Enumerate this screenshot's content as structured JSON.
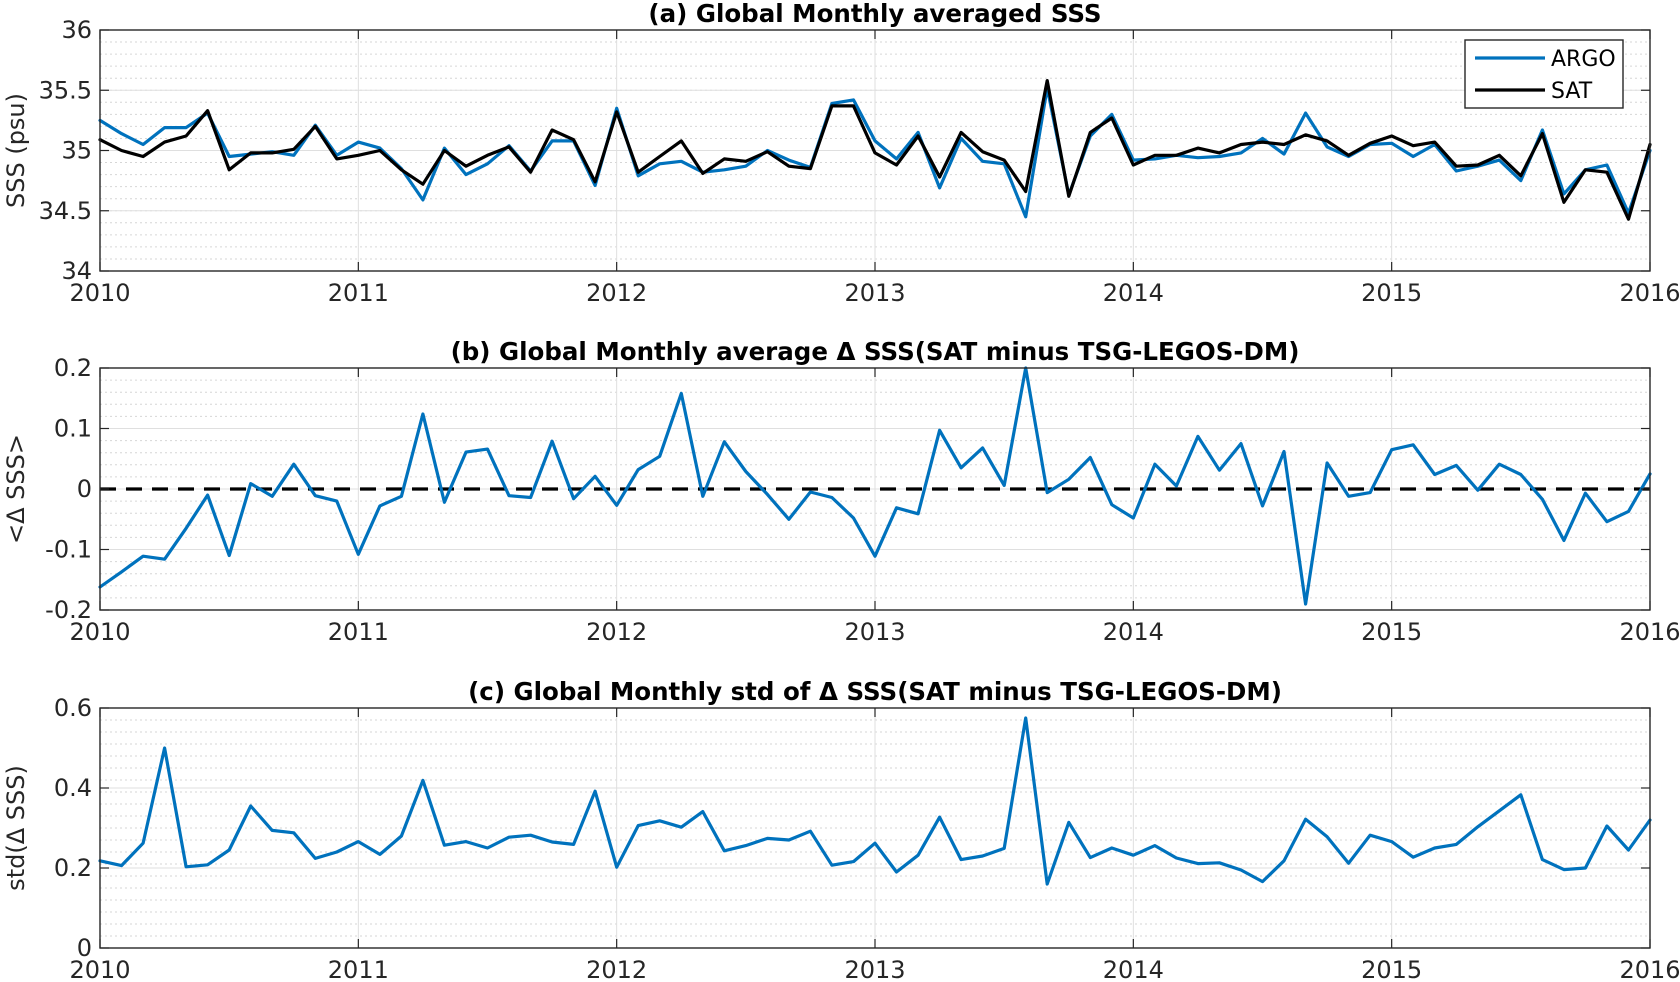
{
  "colors": {
    "blue": "#0072bd",
    "black": "#000000"
  },
  "chart_data": [
    {
      "type": "line",
      "title": "(a) Global Monthly averaged SSS",
      "xlabel": "",
      "ylabel": "SSS (psu)",
      "xlim": [
        2010,
        2016
      ],
      "ylim": [
        34,
        36
      ],
      "xticks": [
        "2010",
        "2011",
        "2012",
        "2013",
        "2014",
        "2015",
        "2016"
      ],
      "yticks": [
        "34",
        "34.5",
        "35",
        "35.5",
        "36"
      ],
      "legend": {
        "position": "top-right",
        "entries": [
          "ARGO",
          "SAT"
        ]
      },
      "grid": true,
      "x_start": "2010-01",
      "x_step_months": 1,
      "series": [
        {
          "name": "ARGO",
          "color": "#0072bd",
          "values": [
            35.25,
            35.14,
            35.05,
            35.19,
            35.19,
            35.31,
            34.95,
            34.97,
            34.99,
            34.96,
            35.21,
            34.96,
            35.07,
            35.02,
            34.85,
            34.59,
            35.02,
            34.8,
            34.89,
            35.04,
            34.83,
            35.08,
            35.08,
            34.71,
            35.35,
            34.79,
            34.89,
            34.91,
            34.82,
            34.84,
            34.87,
            35.0,
            34.92,
            34.86,
            35.39,
            35.42,
            35.08,
            34.93,
            35.15,
            34.69,
            35.1,
            34.91,
            34.89,
            34.45,
            35.52,
            34.63,
            35.12,
            35.3,
            34.92,
            34.93,
            34.96,
            34.94,
            34.95,
            34.98,
            35.1,
            34.97,
            35.31,
            35.03,
            34.95,
            35.05,
            35.06,
            34.95,
            35.05,
            34.83,
            34.87,
            34.92,
            34.75,
            35.17,
            34.64,
            34.84,
            34.88,
            34.48,
            35.0
          ]
        },
        {
          "name": "SAT",
          "color": "#000000",
          "values": [
            35.09,
            35.0,
            34.95,
            35.07,
            35.12,
            35.33,
            34.84,
            34.98,
            34.98,
            35.01,
            35.2,
            34.93,
            34.96,
            35.0,
            34.84,
            34.72,
            35.0,
            34.87,
            34.96,
            35.03,
            34.82,
            35.17,
            35.09,
            34.74,
            35.32,
            34.82,
            34.95,
            35.08,
            34.81,
            34.93,
            34.91,
            34.99,
            34.87,
            34.85,
            35.37,
            35.37,
            34.98,
            34.88,
            35.12,
            34.78,
            35.15,
            34.99,
            34.92,
            34.66,
            35.58,
            34.62,
            35.15,
            35.27,
            34.88,
            34.96,
            34.96,
            35.02,
            34.98,
            35.05,
            35.07,
            35.05,
            35.13,
            35.08,
            34.96,
            35.06,
            35.12,
            35.04,
            35.07,
            34.87,
            34.88,
            34.96,
            34.79,
            35.14,
            34.57,
            34.84,
            34.82,
            34.43,
            35.05
          ]
        }
      ]
    },
    {
      "type": "line",
      "title": "(b) Global Monthly average Δ SSS(SAT minus TSG-LEGOS-DM)",
      "xlabel": "",
      "ylabel": "<Δ SSS>",
      "xlim": [
        2010,
        2016
      ],
      "ylim": [
        -0.2,
        0.2
      ],
      "xticks": [
        "2010",
        "2011",
        "2012",
        "2013",
        "2014",
        "2015",
        "2016"
      ],
      "yticks": [
        "-0.2",
        "-0.1",
        "0",
        "0.1",
        "0.2"
      ],
      "grid": true,
      "reference_line": {
        "y": 0,
        "style": "dashed",
        "color": "#000000"
      },
      "x_start": "2010-01",
      "x_step_months": 1,
      "series": [
        {
          "color": "#0072bd",
          "values": [
            -0.162,
            -0.137,
            -0.111,
            -0.116,
            -0.065,
            -0.01,
            -0.11,
            0.009,
            -0.012,
            0.041,
            -0.011,
            -0.02,
            -0.108,
            -0.028,
            -0.012,
            0.124,
            -0.022,
            0.061,
            0.066,
            -0.011,
            -0.014,
            0.079,
            -0.016,
            0.021,
            -0.027,
            0.032,
            0.054,
            0.158,
            -0.012,
            0.078,
            0.029,
            -0.009,
            -0.05,
            -0.005,
            -0.014,
            -0.048,
            -0.111,
            -0.031,
            -0.041,
            0.097,
            0.035,
            0.068,
            0.006,
            0.2,
            -0.006,
            0.016,
            0.052,
            -0.026,
            -0.048,
            0.041,
            0.005,
            0.087,
            0.031,
            0.075,
            -0.028,
            0.062,
            -0.19,
            0.043,
            -0.012,
            -0.006,
            0.065,
            0.073,
            0.024,
            0.039,
            -0.002,
            0.041,
            0.024,
            -0.017,
            -0.085,
            -0.007,
            -0.054,
            -0.037,
            0.025
          ]
        }
      ]
    },
    {
      "type": "line",
      "title": "(c) Global Monthly std of Δ SSS(SAT minus TSG-LEGOS-DM)",
      "xlabel": "",
      "ylabel": "std(Δ SSS)",
      "xlim": [
        2010,
        2016
      ],
      "ylim": [
        0,
        0.6
      ],
      "xticks": [
        "2010",
        "2011",
        "2012",
        "2013",
        "2014",
        "2015",
        "2016"
      ],
      "yticks": [
        "0",
        "0.2",
        "0.4",
        "0.6"
      ],
      "grid": true,
      "x_start": "2010-01",
      "x_step_months": 1,
      "series": [
        {
          "color": "#0072bd",
          "values": [
            0.218,
            0.206,
            0.262,
            0.5,
            0.203,
            0.208,
            0.245,
            0.355,
            0.294,
            0.288,
            0.224,
            0.24,
            0.266,
            0.234,
            0.28,
            0.419,
            0.257,
            0.266,
            0.25,
            0.277,
            0.282,
            0.265,
            0.259,
            0.392,
            0.202,
            0.306,
            0.318,
            0.302,
            0.341,
            0.243,
            0.256,
            0.274,
            0.27,
            0.292,
            0.207,
            0.216,
            0.262,
            0.19,
            0.232,
            0.327,
            0.221,
            0.23,
            0.249,
            0.575,
            0.16,
            0.314,
            0.226,
            0.25,
            0.232,
            0.256,
            0.225,
            0.211,
            0.213,
            0.195,
            0.166,
            0.218,
            0.322,
            0.278,
            0.212,
            0.282,
            0.266,
            0.227,
            0.25,
            0.259,
            0.303,
            0.343,
            0.383,
            0.221,
            0.196,
            0.2,
            0.305,
            0.245,
            0.32
          ]
        }
      ]
    }
  ]
}
